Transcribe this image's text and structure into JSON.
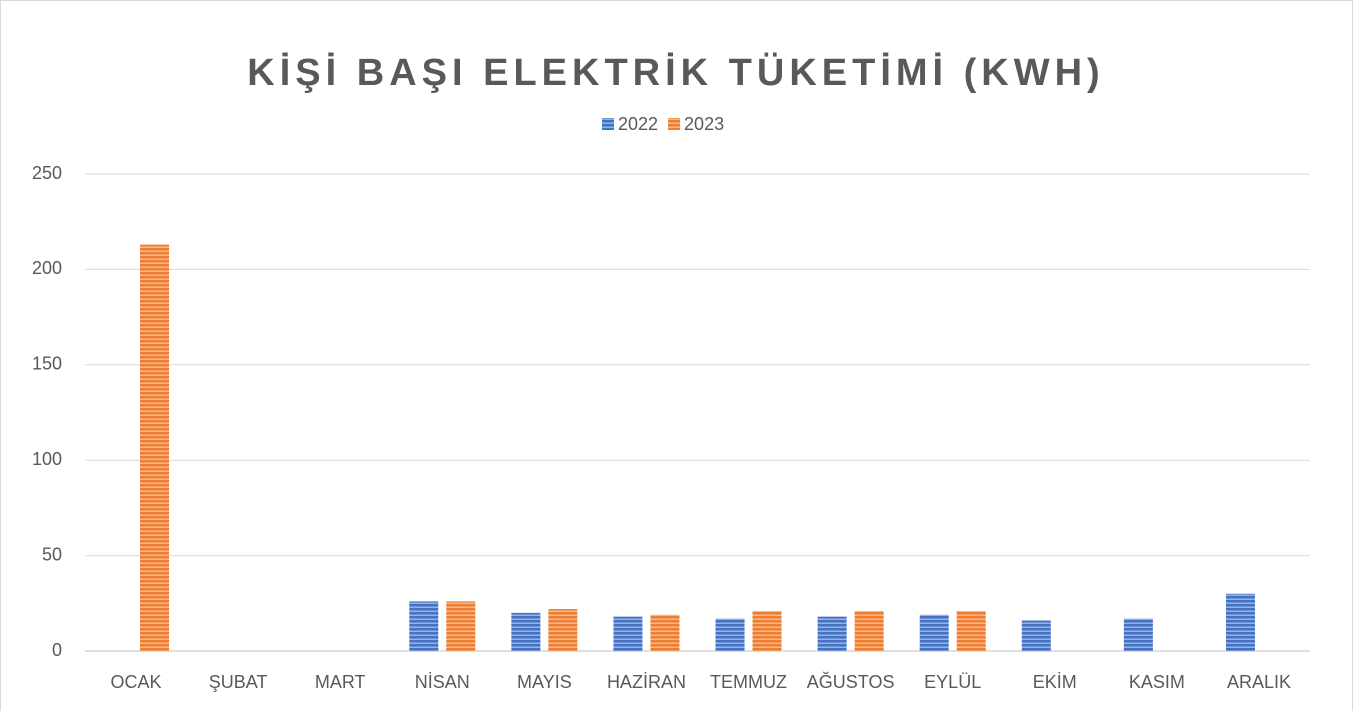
{
  "chart_data": {
    "type": "bar",
    "title": "KİŞİ BAŞI ELEKTRİK TÜKETİMİ (KWH)",
    "categories": [
      "OCAK",
      "ŞUBAT",
      "MART",
      "NİSAN",
      "MAYIS",
      "HAZİRAN",
      "TEMMUZ",
      "AĞUSTOS",
      "EYLÜL",
      "EKİM",
      "KASIM",
      "ARALIK"
    ],
    "series": [
      {
        "name": "2022",
        "color": "#4472c4",
        "values": [
          null,
          null,
          null,
          26,
          20,
          18,
          17,
          18,
          19,
          16,
          17,
          30
        ]
      },
      {
        "name": "2023",
        "color": "#ed7d31",
        "values": [
          213,
          null,
          null,
          26,
          22,
          19,
          21,
          21,
          21,
          null,
          null,
          null
        ]
      }
    ],
    "ylim": [
      0,
      250
    ],
    "yticks": [
      0,
      50,
      100,
      150,
      200,
      250
    ],
    "grid": true,
    "legend": "top"
  }
}
